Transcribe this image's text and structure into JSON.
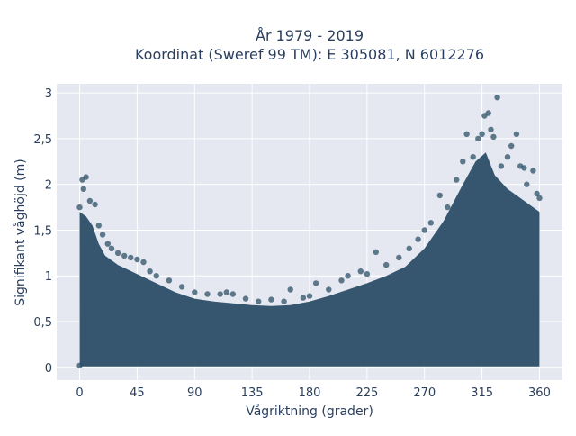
{
  "chart_data": {
    "type": "scatter",
    "title_line1": "År 1979 - 2019",
    "title_line2": "Koordinat (Sweref 99 TM): E 305081, N 6012276",
    "xlabel": "Vågriktning (grader)",
    "ylabel": "Signifikant våghöjd (m)",
    "xlim": [
      -18,
      378
    ],
    "ylim": [
      -0.14,
      3.1
    ],
    "x_ticks": [
      0,
      45,
      90,
      135,
      180,
      225,
      270,
      315,
      360
    ],
    "x_tick_labels": [
      "0",
      "45",
      "90",
      "135",
      "180",
      "225",
      "270",
      "315",
      "360"
    ],
    "y_ticks": [
      0,
      0.5,
      1,
      1.5,
      2,
      2.5,
      3
    ],
    "y_tick_labels": [
      "0",
      "0,5",
      "1",
      "1,5",
      "2",
      "2,5",
      "3"
    ],
    "grid": true,
    "colors": {
      "plot_bg": "#e5e8f0",
      "grid": "#ffffff",
      "marker": "#2e5068",
      "text": "#2a3f5f"
    },
    "series": [
      {
        "points": [
          [
            0,
            0.02
          ],
          [
            0,
            1.75
          ],
          [
            2,
            2.05
          ],
          [
            5,
            2.08
          ],
          [
            3,
            1.95
          ],
          [
            8,
            1.82
          ],
          [
            12,
            1.78
          ],
          [
            15,
            1.55
          ],
          [
            18,
            1.45
          ],
          [
            22,
            1.35
          ],
          [
            25,
            1.3
          ],
          [
            30,
            1.25
          ],
          [
            35,
            1.22
          ],
          [
            40,
            1.2
          ],
          [
            45,
            1.18
          ],
          [
            50,
            1.15
          ],
          [
            55,
            1.05
          ],
          [
            60,
            1.0
          ],
          [
            70,
            0.95
          ],
          [
            80,
            0.88
          ],
          [
            90,
            0.82
          ],
          [
            100,
            0.8
          ],
          [
            110,
            0.8
          ],
          [
            115,
            0.82
          ],
          [
            120,
            0.8
          ],
          [
            130,
            0.75
          ],
          [
            140,
            0.72
          ],
          [
            150,
            0.74
          ],
          [
            160,
            0.72
          ],
          [
            165,
            0.85
          ],
          [
            175,
            0.76
          ],
          [
            180,
            0.78
          ],
          [
            185,
            0.92
          ],
          [
            195,
            0.85
          ],
          [
            205,
            0.95
          ],
          [
            210,
            1.0
          ],
          [
            220,
            1.05
          ],
          [
            225,
            1.02
          ],
          [
            232,
            1.26
          ],
          [
            240,
            1.12
          ],
          [
            250,
            1.2
          ],
          [
            258,
            1.3
          ],
          [
            265,
            1.4
          ],
          [
            270,
            1.5
          ],
          [
            275,
            1.58
          ],
          [
            282,
            1.88
          ],
          [
            288,
            1.75
          ],
          [
            295,
            2.05
          ],
          [
            300,
            2.25
          ],
          [
            303,
            2.55
          ],
          [
            308,
            2.3
          ],
          [
            312,
            2.5
          ],
          [
            315,
            2.55
          ],
          [
            317,
            2.75
          ],
          [
            320,
            2.78
          ],
          [
            322,
            2.6
          ],
          [
            324,
            2.52
          ],
          [
            327,
            2.95
          ],
          [
            330,
            2.2
          ],
          [
            335,
            2.3
          ],
          [
            338,
            2.42
          ],
          [
            342,
            2.55
          ],
          [
            345,
            2.2
          ],
          [
            348,
            2.18
          ],
          [
            350,
            2.0
          ],
          [
            355,
            2.15
          ],
          [
            358,
            1.9
          ],
          [
            360,
            1.85
          ]
        ]
      }
    ]
  }
}
